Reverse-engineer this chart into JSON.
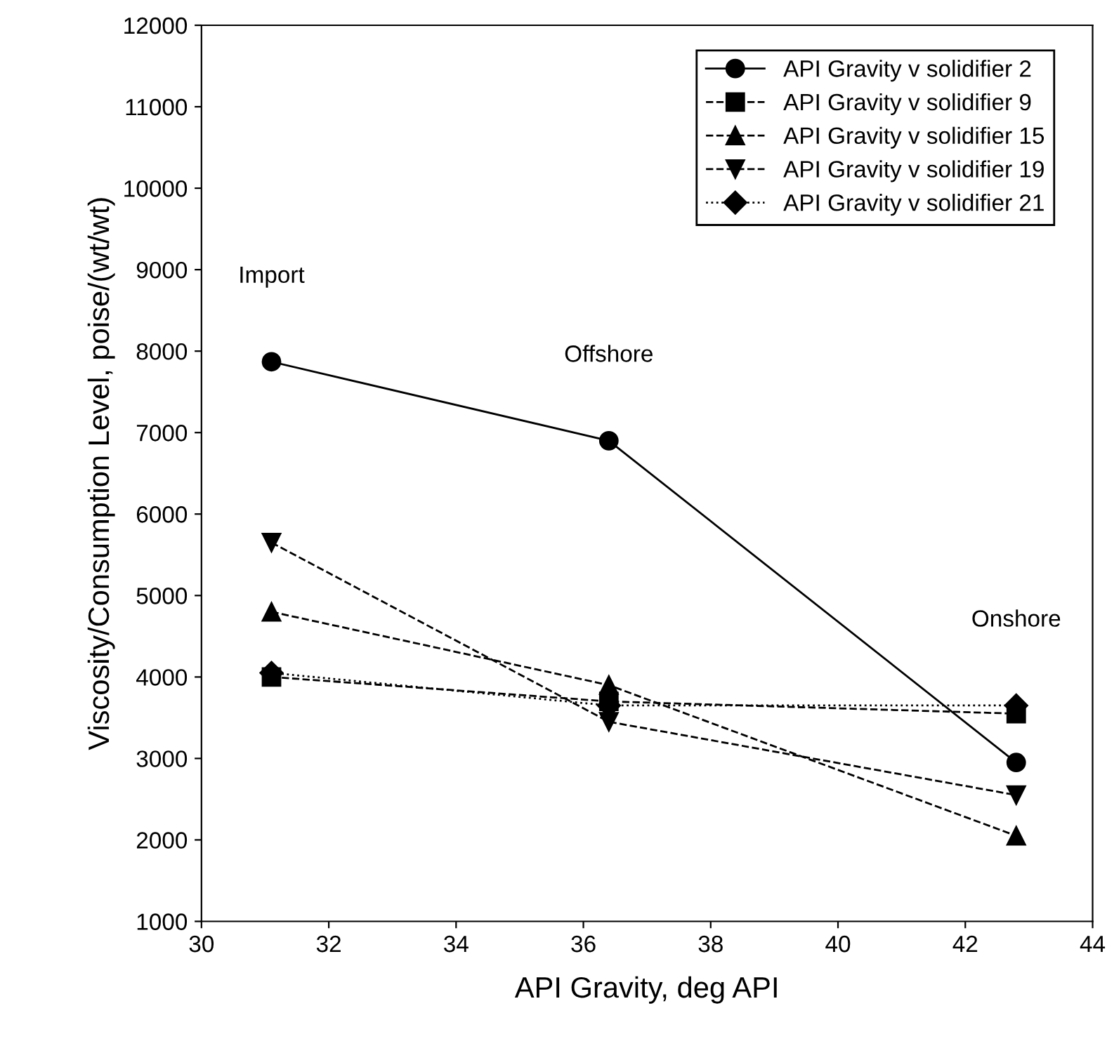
{
  "chart_data": {
    "type": "line",
    "xlabel": "API Gravity, deg API",
    "ylabel": "Viscosity/Consumption Level, poise/(wt/wt)",
    "xlim": [
      30,
      44
    ],
    "xticks": [
      30,
      32,
      34,
      36,
      38,
      40,
      42,
      44
    ],
    "ylim": [
      1000,
      12000
    ],
    "yticks": [
      1000,
      2000,
      3000,
      4000,
      5000,
      6000,
      7000,
      8000,
      9000,
      10000,
      11000,
      12000
    ],
    "x": [
      31.1,
      36.4,
      42.8
    ],
    "series": [
      {
        "name": "API Gravity v solidifier 2",
        "color": "#000000",
        "marker": "circle",
        "line_style": "solid",
        "values": [
          7870,
          6900,
          2950
        ]
      },
      {
        "name": "API Gravity v solidifier 9",
        "color": "#000000",
        "marker": "square",
        "line_style": "dashed",
        "values": [
          4000,
          3700,
          3550
        ]
      },
      {
        "name": "API Gravity v solidifier 15",
        "color": "#000000",
        "marker": "triangle",
        "line_style": "dashed",
        "values": [
          4800,
          3900,
          2050
        ]
      },
      {
        "name": "API Gravity v solidifier 19",
        "color": "#000000",
        "marker": "triangle_down",
        "line_style": "dashed",
        "values": [
          5650,
          3450,
          2550
        ]
      },
      {
        "name": "API Gravity v solidifier 21",
        "color": "#000000",
        "marker": "diamond",
        "line_style": "dotted",
        "values": [
          4050,
          3650,
          3650
        ]
      }
    ],
    "annotations": [
      "Import",
      "Offshore",
      "Onshore"
    ],
    "legend": "top right",
    "grid": false
  }
}
